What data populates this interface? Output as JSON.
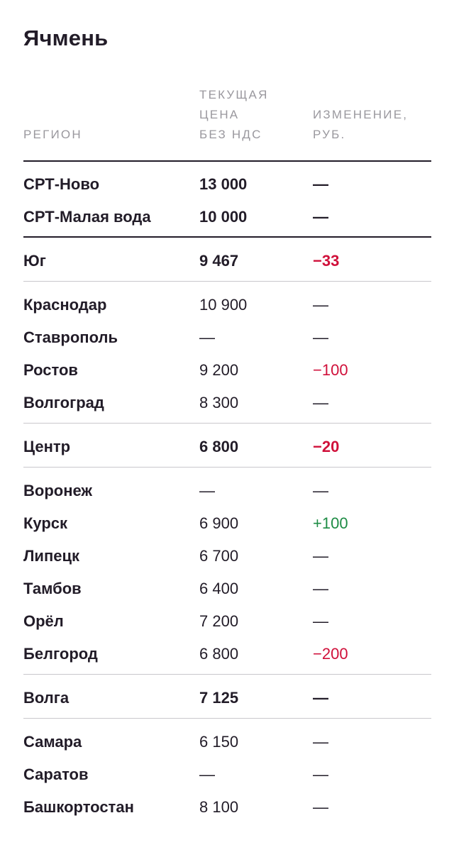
{
  "title": "Ячмень",
  "headers": {
    "region": "РЕГИОН",
    "price": "ТЕКУЩАЯ\nЦЕНА\nБЕЗ НДС",
    "change": "ИЗМЕНЕНИЕ,\nРУБ."
  },
  "colors": {
    "negative": "#d0103a",
    "positive": "#1e8c45",
    "text": "#221c28",
    "header": "#9a989e"
  },
  "rows": [
    {
      "name": "СРТ-Ново",
      "price": "13 000",
      "change": "—",
      "bold": true,
      "trend": "none"
    },
    {
      "name": "СРТ-Малая вода",
      "price": "10 000",
      "change": "—",
      "bold": true,
      "trend": "none"
    },
    {
      "name": "Юг",
      "price": "9 467",
      "change": "−33",
      "bold": true,
      "trend": "neg"
    },
    {
      "name": "Краснодар",
      "price": "10 900",
      "change": "—",
      "bold": false,
      "trend": "none"
    },
    {
      "name": "Ставрополь",
      "price": "—",
      "change": "—",
      "bold": false,
      "trend": "none"
    },
    {
      "name": "Ростов",
      "price": "9 200",
      "change": "−100",
      "bold": false,
      "trend": "neg"
    },
    {
      "name": "Волгоград",
      "price": "8 300",
      "change": "—",
      "bold": false,
      "trend": "none"
    },
    {
      "name": "Центр",
      "price": "6 800",
      "change": "−20",
      "bold": true,
      "trend": "neg"
    },
    {
      "name": "Воронеж",
      "price": "—",
      "change": "—",
      "bold": false,
      "trend": "none"
    },
    {
      "name": "Курск",
      "price": "6 900",
      "change": "+100",
      "bold": false,
      "trend": "pos"
    },
    {
      "name": "Липецк",
      "price": "6 700",
      "change": "—",
      "bold": false,
      "trend": "none"
    },
    {
      "name": "Тамбов",
      "price": "6 400",
      "change": "—",
      "bold": false,
      "trend": "none"
    },
    {
      "name": "Орёл",
      "price": "7 200",
      "change": "—",
      "bold": false,
      "trend": "none"
    },
    {
      "name": "Белгород",
      "price": "6 800",
      "change": "−200",
      "bold": false,
      "trend": "neg"
    },
    {
      "name": "Волга",
      "price": "7 125",
      "change": "—",
      "bold": true,
      "trend": "none"
    },
    {
      "name": "Самара",
      "price": "6 150",
      "change": "—",
      "bold": false,
      "trend": "none"
    },
    {
      "name": "Саратов",
      "price": "—",
      "change": "—",
      "bold": false,
      "trend": "none"
    },
    {
      "name": "Башкортостан",
      "price": "8 100",
      "change": "—",
      "bold": false,
      "trend": "none"
    }
  ]
}
